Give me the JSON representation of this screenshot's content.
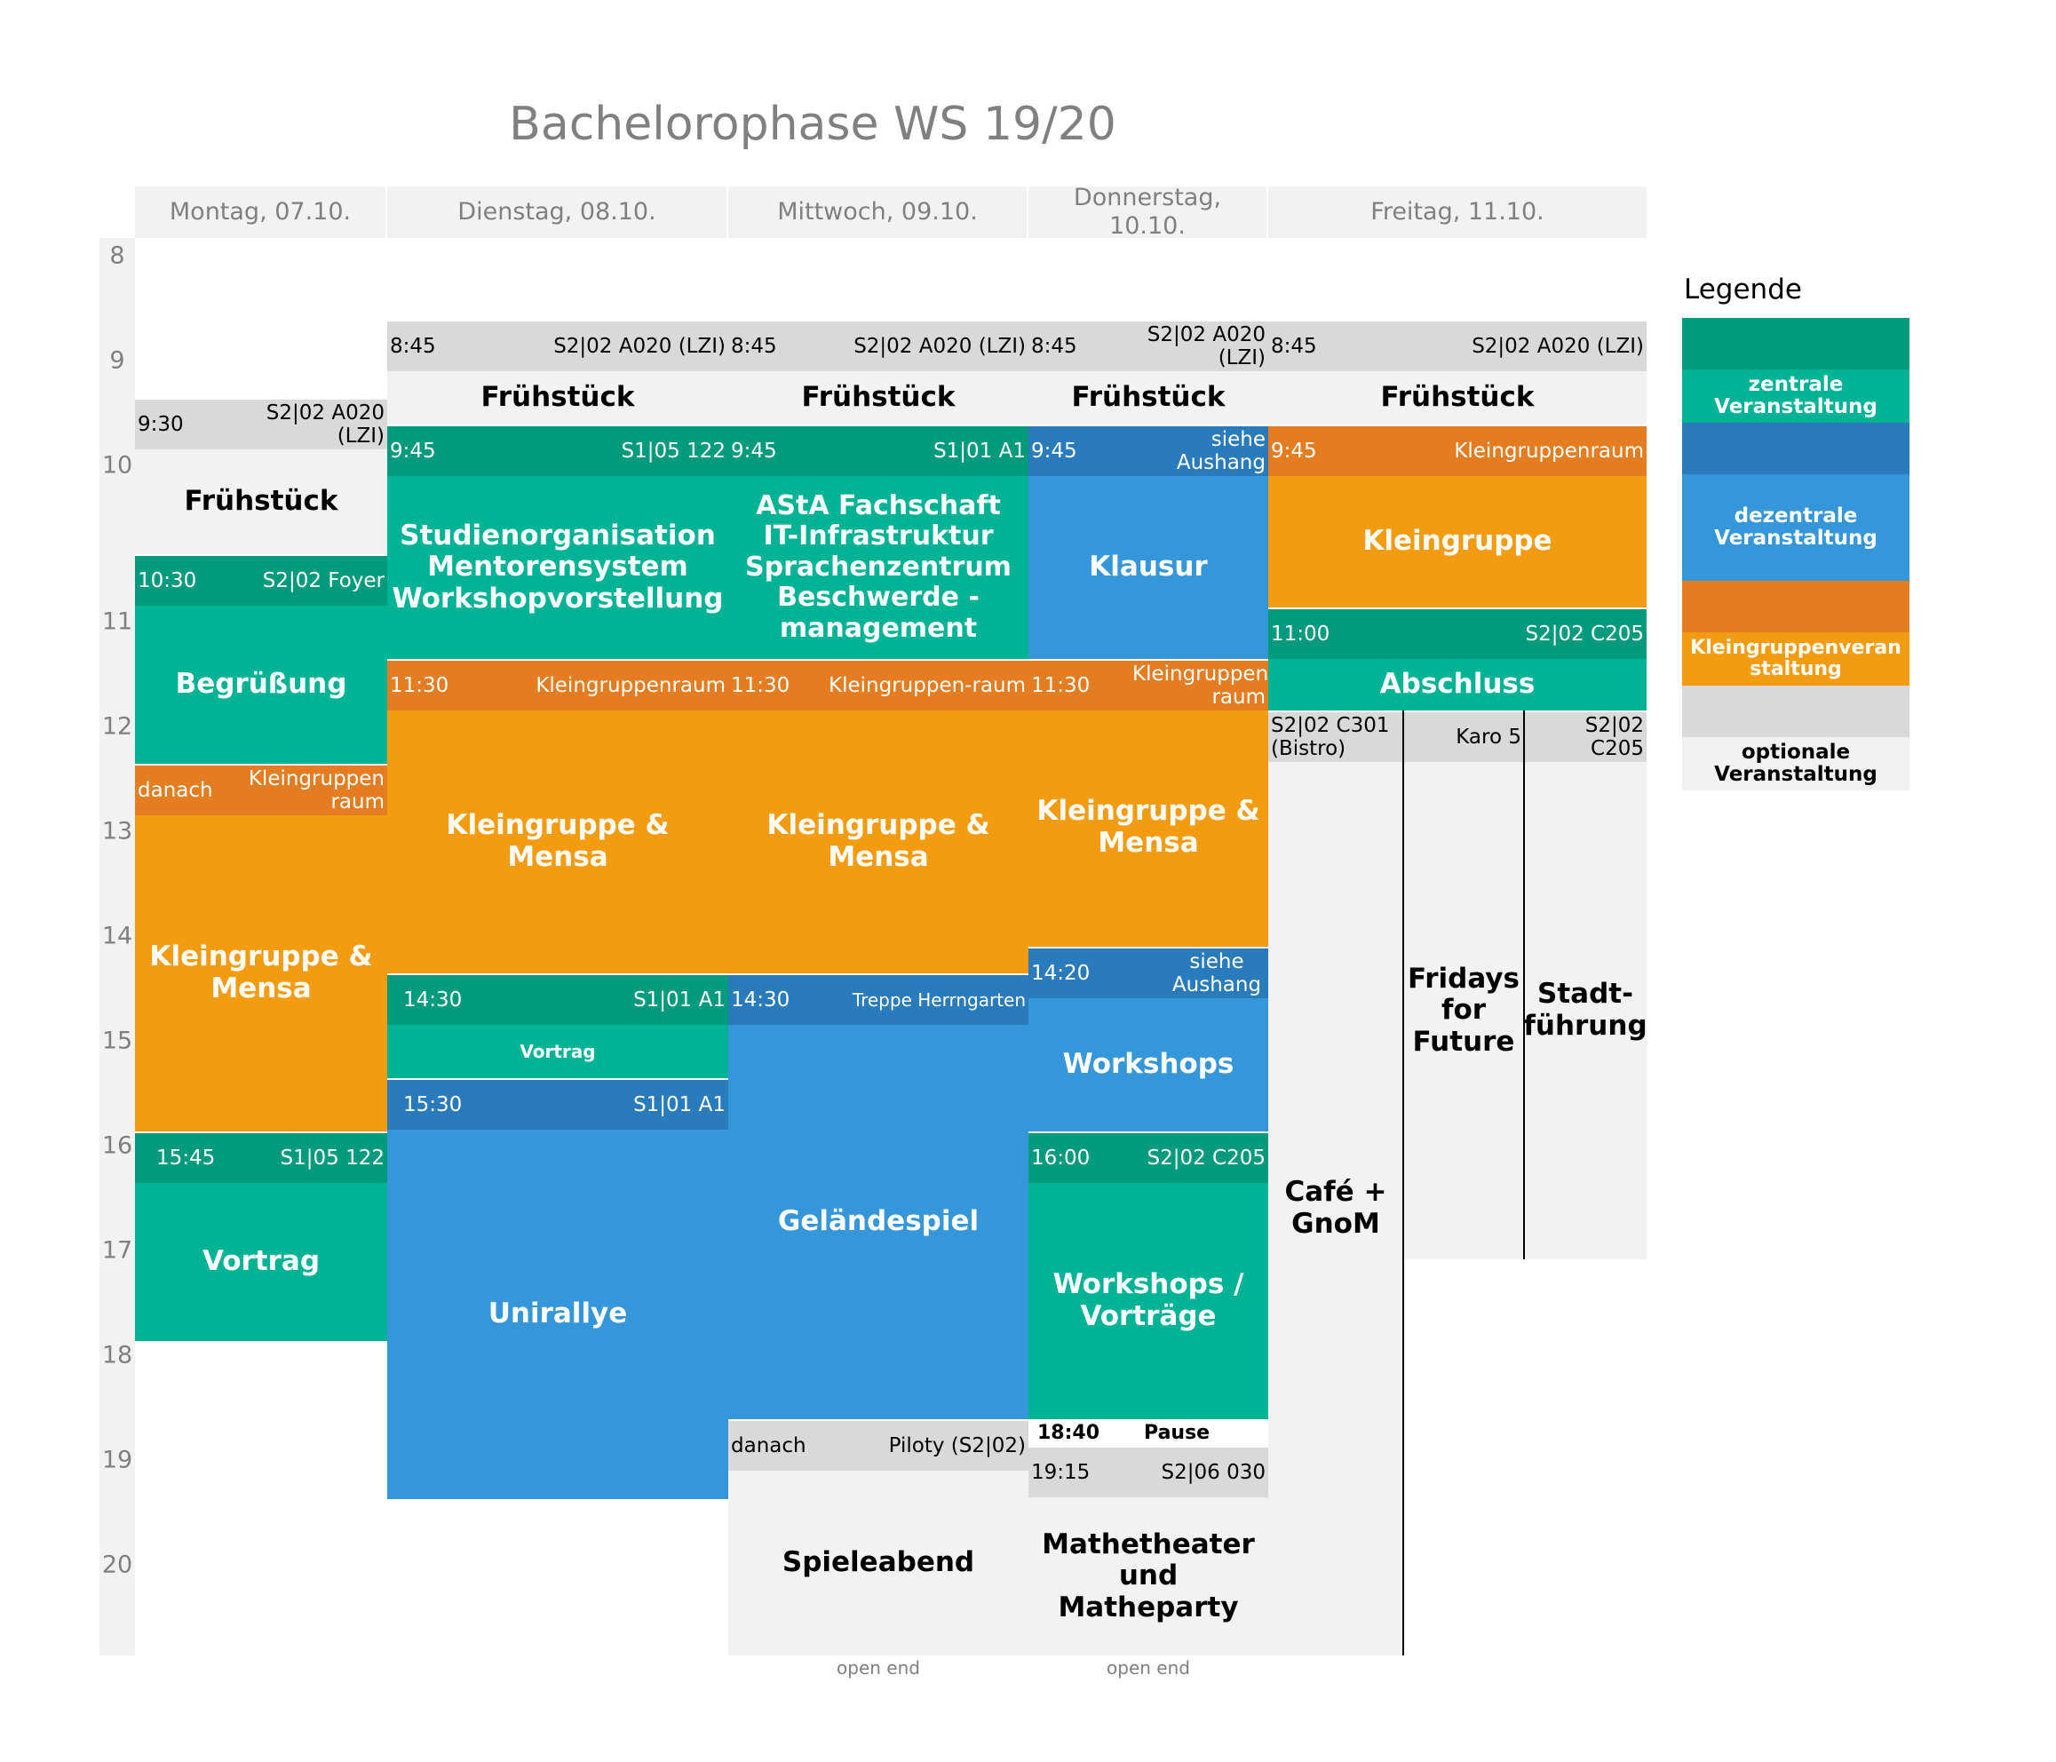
{
  "title": "Bachelorophase WS 19/20",
  "days": [
    "Montag, 07.10.",
    "Dienstag, 08.10.",
    "Mittwoch, 09.10.",
    "Donnerstag, 10.10.",
    "Freitag, 11.10."
  ],
  "hours": [
    "8",
    "9",
    "10",
    "11",
    "12",
    "13",
    "14",
    "15",
    "16",
    "17",
    "18",
    "19",
    "20"
  ],
  "colors": {
    "central_dark": "#009a7c",
    "central": "#00b394",
    "decentral_dark": "#2a7bbb",
    "decentral": "#3597da",
    "group_dark": "#e47d22",
    "group": "#f39c12",
    "optional_dark": "#d9d9d9",
    "optional": "#f2f2f2"
  },
  "monday": {
    "fruehstueck": {
      "time": "9:30",
      "room": "S2|02 A020 (LZI)",
      "title": "Frühstück"
    },
    "begruessung": {
      "time": "10:30",
      "room": "S2|02 Foyer",
      "title": "Begrüßung"
    },
    "kleingruppe": {
      "time": "danach",
      "room": "Kleingruppen raum",
      "title": "Kleingruppe & Mensa"
    },
    "vortrag": {
      "time": "15:45",
      "room": "S1|05 122",
      "title": "Vortrag"
    }
  },
  "tuesday": {
    "fruehstueck": {
      "time": "8:45",
      "room": "S2|02 A020 (LZI)",
      "title": "Frühstück"
    },
    "studienorg": {
      "time": "9:45",
      "room": "S1|05 122",
      "title": "Studienorganisation Mentorensystem Workshopvorstellung"
    },
    "kleingruppe": {
      "time": "11:30",
      "room": "Kleingruppenraum",
      "title": "Kleingruppe & Mensa"
    },
    "vortrag": {
      "time": "14:30",
      "room": "S1|01 A1",
      "title": "Vortrag"
    },
    "unirallye": {
      "time": "15:30",
      "room": "S1|01 A1",
      "title": "Unirallye"
    }
  },
  "wednesday": {
    "fruehstueck": {
      "time": "8:45",
      "room": "S2|02 A020 (LZI)",
      "title": "Frühstück"
    },
    "asta": {
      "time": "9:45",
      "room": "S1|01 A1",
      "title": "AStA Fachschaft IT-Infrastruktur Sprachenzentrum Beschwerde -management"
    },
    "kleingruppe": {
      "time": "11:30",
      "room": "Kleingruppen-raum",
      "title": "Kleingruppe & Mensa"
    },
    "gelaende": {
      "time": "14:30",
      "room": "Treppe Herrngarten",
      "title": "Geländespiel"
    },
    "spieleabend": {
      "time": "danach",
      "room": "Piloty (S2|02)",
      "title": "Spieleabend"
    },
    "open_end": "open end"
  },
  "thursday": {
    "fruehstueck": {
      "time": "8:45",
      "room": "S2|02 A020 (LZI)",
      "title": "Frühstück"
    },
    "klausur": {
      "time": "9:45",
      "room": "siehe Aushang",
      "title": "Klausur"
    },
    "kleingruppe": {
      "time": "11:30",
      "room": "Kleingruppen-raum",
      "title": "Kleingruppe & Mensa"
    },
    "workshops": {
      "time": "14:20",
      "room": "siehe Aushang",
      "title": "Workshops"
    },
    "workshops2": {
      "time": "16:00",
      "room": "S2|02 C205",
      "title": "Workshops / Vorträge"
    },
    "pause": {
      "time": "18:40",
      "label": "Pause"
    },
    "mathetheater": {
      "time": "19:15",
      "room": "S2|06 030",
      "title": "Mathetheater und Matheparty"
    },
    "open_end": "open end"
  },
  "friday": {
    "fruehstueck": {
      "time": "8:45",
      "room": "S2|02 A020 (LZI)",
      "title": "Frühstück"
    },
    "kleingruppe": {
      "time": "9:45",
      "room": "Kleingruppenraum",
      "title": "Kleingruppe"
    },
    "abschluss": {
      "time": "11:00",
      "room": "S2|02 C205",
      "title": "Abschluss"
    },
    "cafe": {
      "room": "S2|02 C301 (Bistro)",
      "title": "Café + GnoM"
    },
    "fridays": {
      "room": "Karo 5",
      "title": "Fridays for Future"
    },
    "stadt": {
      "room": "S2|02 C205",
      "title": "Stadt-führung"
    }
  },
  "legend": {
    "title": "Legende",
    "central": "zentrale Veranstaltung",
    "decentral": "dezentrale Veranstaltung",
    "group": "Kleingruppenveran staltung",
    "optional": "optionale Veranstaltung"
  }
}
